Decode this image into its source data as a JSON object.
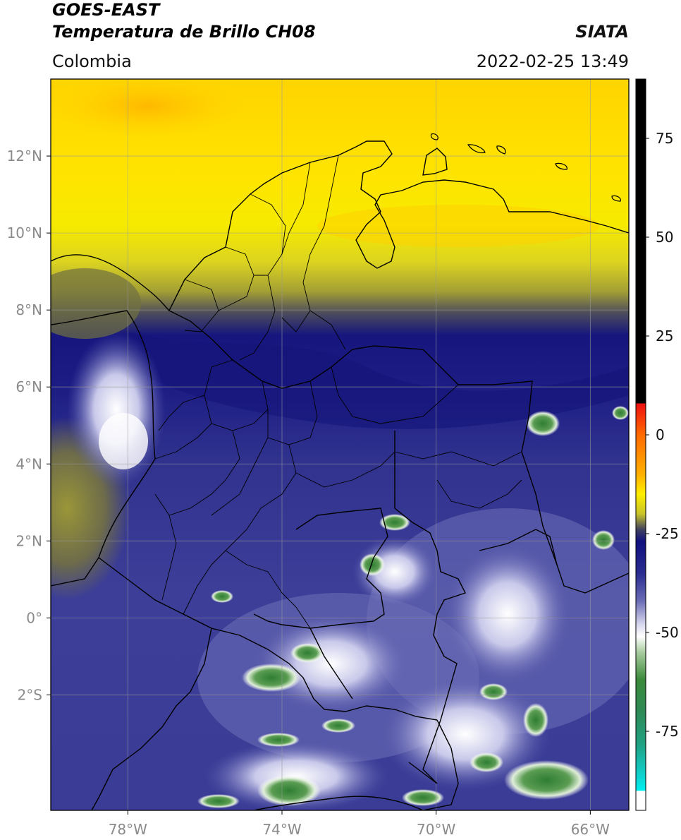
{
  "header": {
    "satellite": "GOES-EAST",
    "product": "Temperatura de Brillo CH08",
    "organization": "SIATA",
    "region": "Colombia",
    "datetime": "2022-02-25 13:49"
  },
  "map": {
    "lon_range": [
      -80,
      -65
    ],
    "lat_range": [
      -5,
      14
    ],
    "lon_ticks": [
      {
        "value": -78,
        "label": "78°W"
      },
      {
        "value": -74,
        "label": "74°W"
      },
      {
        "value": -70,
        "label": "70°W"
      },
      {
        "value": -66,
        "label": "66°W"
      }
    ],
    "lat_ticks": [
      {
        "value": 12,
        "label": "12°N"
      },
      {
        "value": 10,
        "label": "10°N"
      },
      {
        "value": 8,
        "label": "8°N"
      },
      {
        "value": 6,
        "label": "6°N"
      },
      {
        "value": 4,
        "label": "4°N"
      },
      {
        "value": 2,
        "label": "2°N"
      },
      {
        "value": 0,
        "label": "0°"
      },
      {
        "value": -2,
        "label": "2°S"
      }
    ],
    "grid": true
  },
  "colorbar": {
    "range": [
      -95,
      90
    ],
    "ticks": [
      {
        "value": 75,
        "label": "75"
      },
      {
        "value": 50,
        "label": "50"
      },
      {
        "value": 25,
        "label": "25"
      },
      {
        "value": 0,
        "label": "0"
      },
      {
        "value": -25,
        "label": "-25"
      },
      {
        "value": -50,
        "label": "-50"
      },
      {
        "value": -75,
        "label": "-75"
      }
    ],
    "stops": [
      {
        "value": 90,
        "color": "#000000"
      },
      {
        "value": 8,
        "color": "#000000"
      },
      {
        "value": 7.9,
        "color": "#ee1010"
      },
      {
        "value": 0,
        "color": "#ff6a00"
      },
      {
        "value": -10,
        "color": "#ffb000"
      },
      {
        "value": -15,
        "color": "#ffee00"
      },
      {
        "value": -20,
        "color": "#c8c42a"
      },
      {
        "value": -24,
        "color": "#404060"
      },
      {
        "value": -27,
        "color": "#101080"
      },
      {
        "value": -35,
        "color": "#2a2c90"
      },
      {
        "value": -42,
        "color": "#6a6cb6"
      },
      {
        "value": -48,
        "color": "#d8d8ee"
      },
      {
        "value": -51,
        "color": "#ffffff"
      },
      {
        "value": -55,
        "color": "#a8cc9e"
      },
      {
        "value": -62,
        "color": "#3a8a3a"
      },
      {
        "value": -70,
        "color": "#2e8a56"
      },
      {
        "value": -78,
        "color": "#20a080"
      },
      {
        "value": -86,
        "color": "#10d0cc"
      },
      {
        "value": -90,
        "color": "#00f0f0"
      },
      {
        "value": -90.1,
        "color": "#ffffff"
      },
      {
        "value": -95,
        "color": "#ffffff"
      }
    ]
  }
}
